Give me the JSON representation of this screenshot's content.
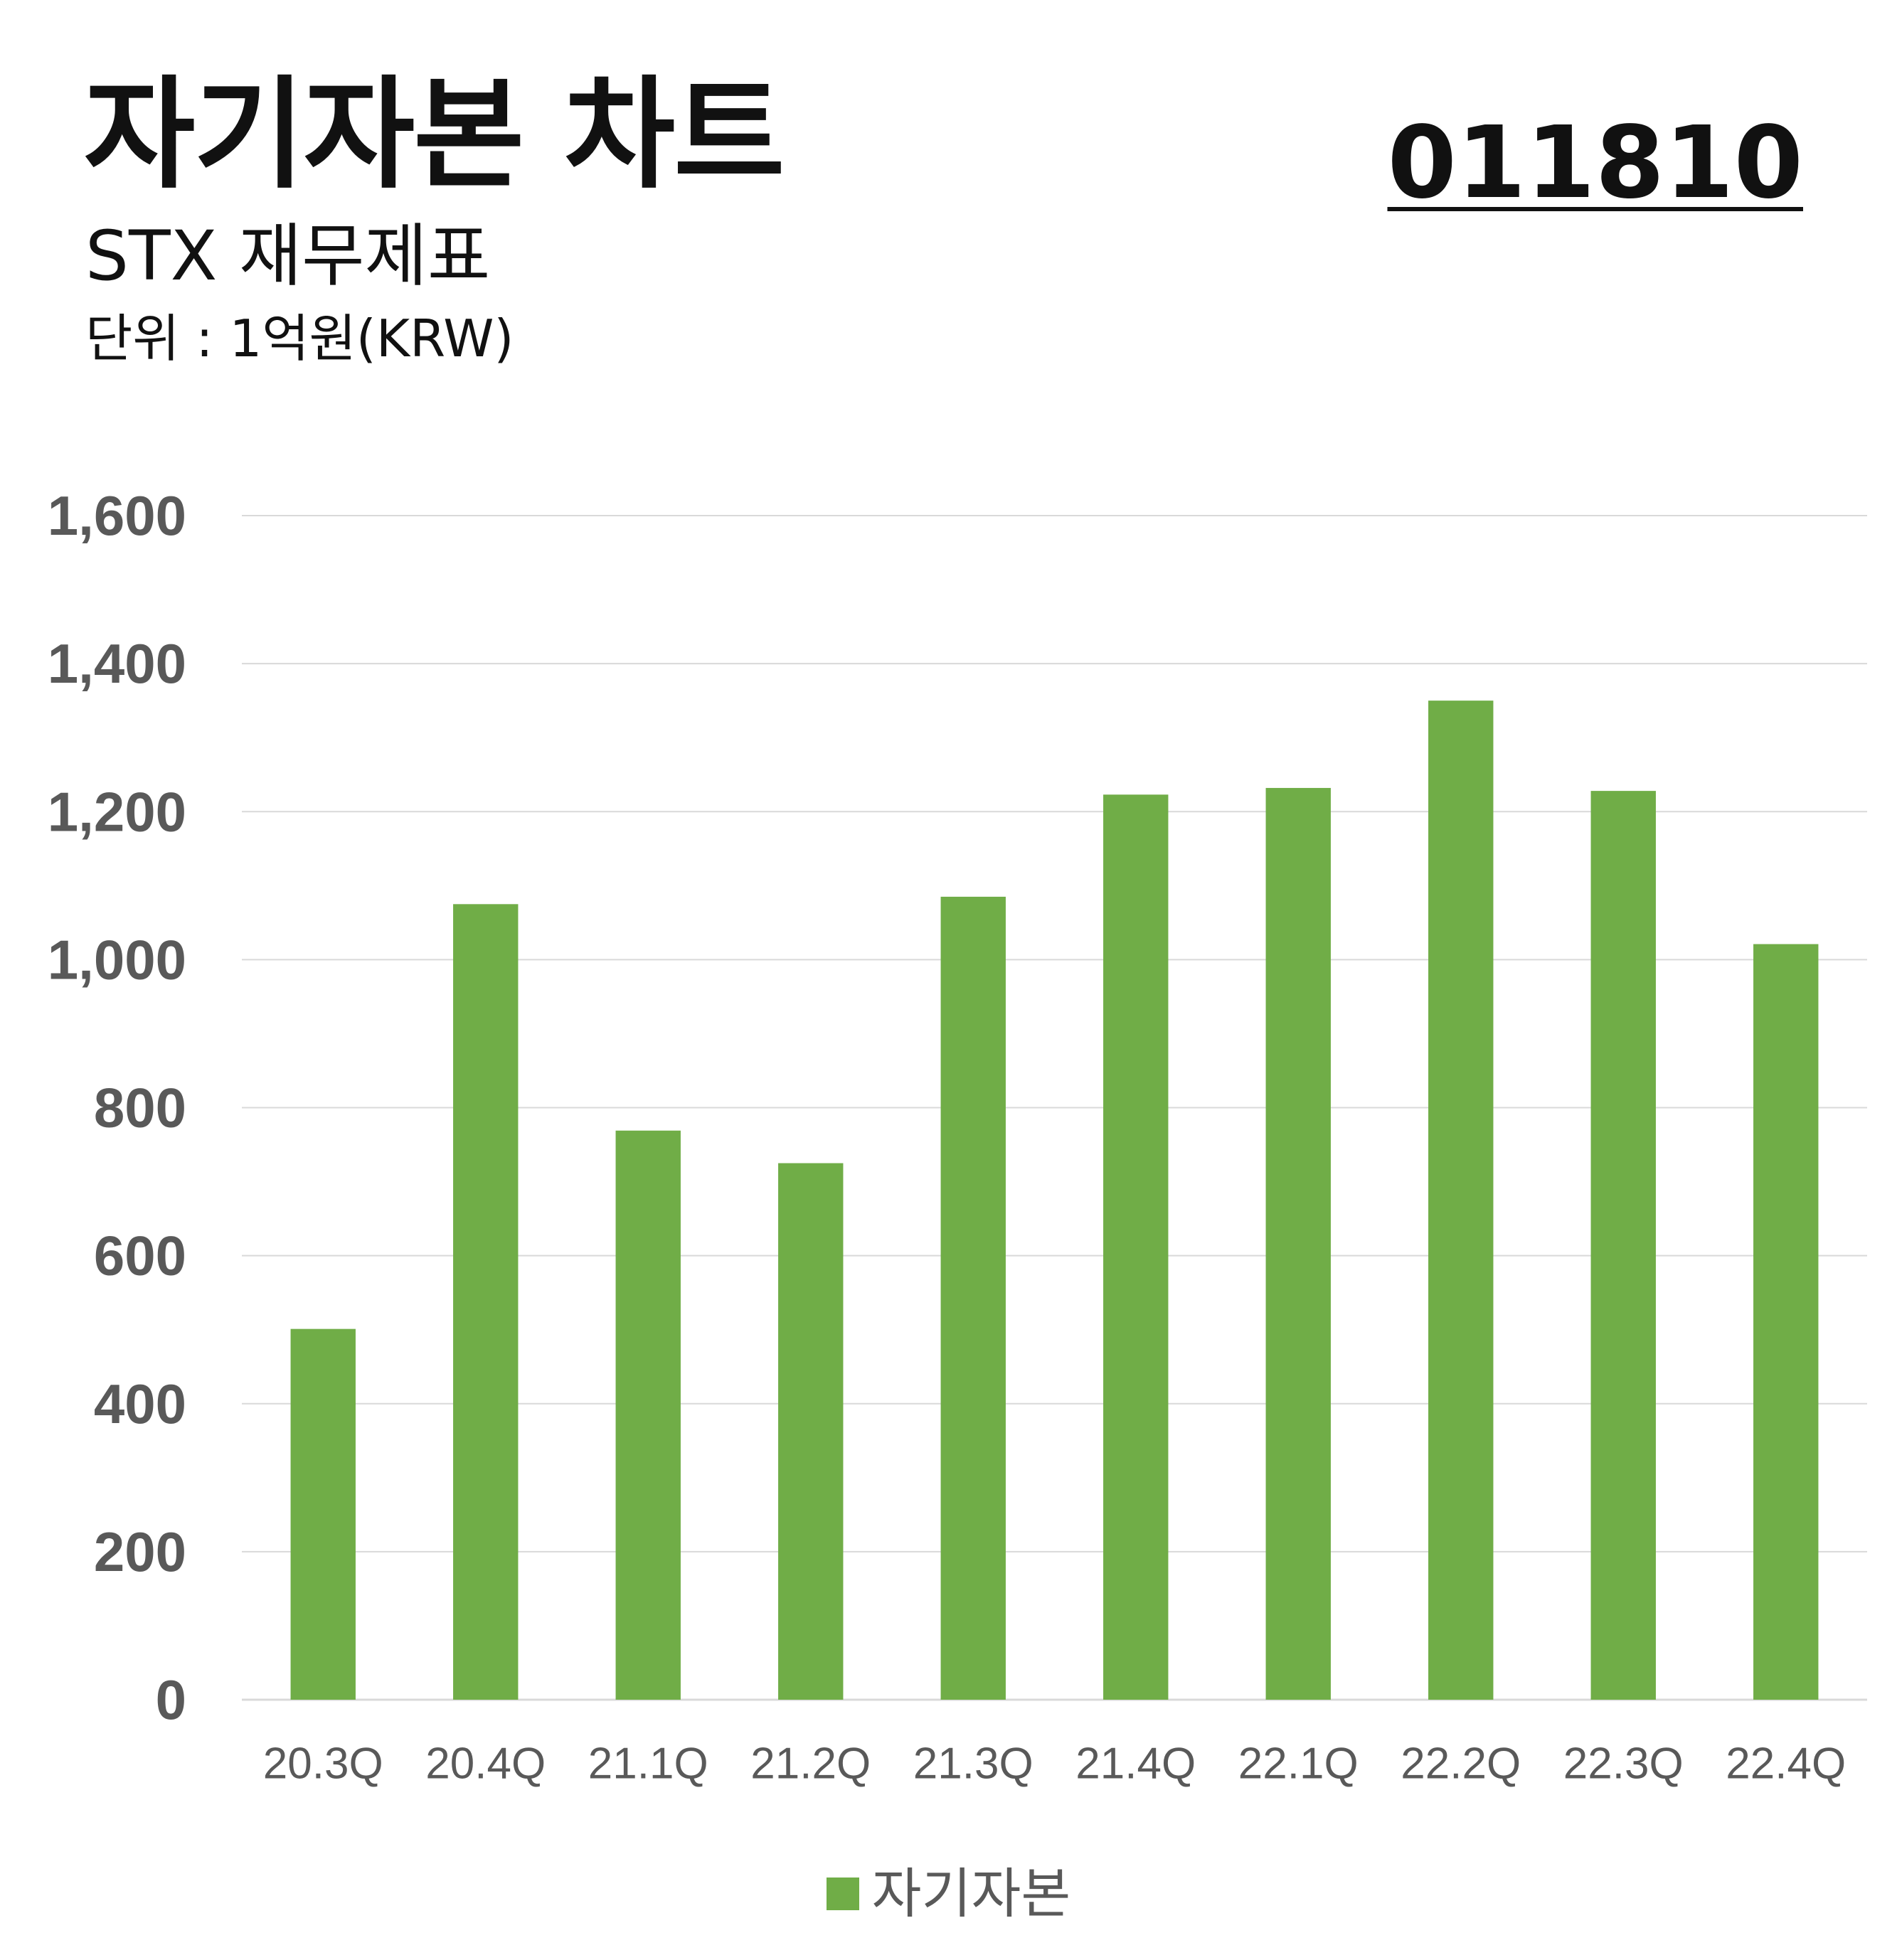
{
  "header": {
    "title": "자기자본 차트",
    "subtitle": "STX 재무제표",
    "unit": "단위 : 1억원(KRW)",
    "code": "011810"
  },
  "colors": {
    "bar": "#70AD47",
    "grid": "#D9D9D9",
    "axis_text": "#595959"
  },
  "chart_data": {
    "type": "bar",
    "title": "자기자본 차트",
    "categories": [
      "20.3Q",
      "20.4Q",
      "21.1Q",
      "21.2Q",
      "21.3Q",
      "21.4Q",
      "22.1Q",
      "22.2Q",
      "22.3Q",
      "22.4Q"
    ],
    "series": [
      {
        "name": "자기자본",
        "values": [
          501,
          1075,
          769,
          725,
          1085,
          1223,
          1232,
          1350,
          1228,
          1021
        ]
      }
    ],
    "ylim": [
      0,
      1600
    ],
    "yticks": [
      0,
      200,
      400,
      600,
      800,
      1000,
      1200,
      1400,
      1600
    ],
    "ytick_labels": [
      "0",
      "200",
      "400",
      "600",
      "800",
      "1,000",
      "1,200",
      "1,400",
      "1,600"
    ],
    "grid": true,
    "legend_position": "bottom"
  }
}
